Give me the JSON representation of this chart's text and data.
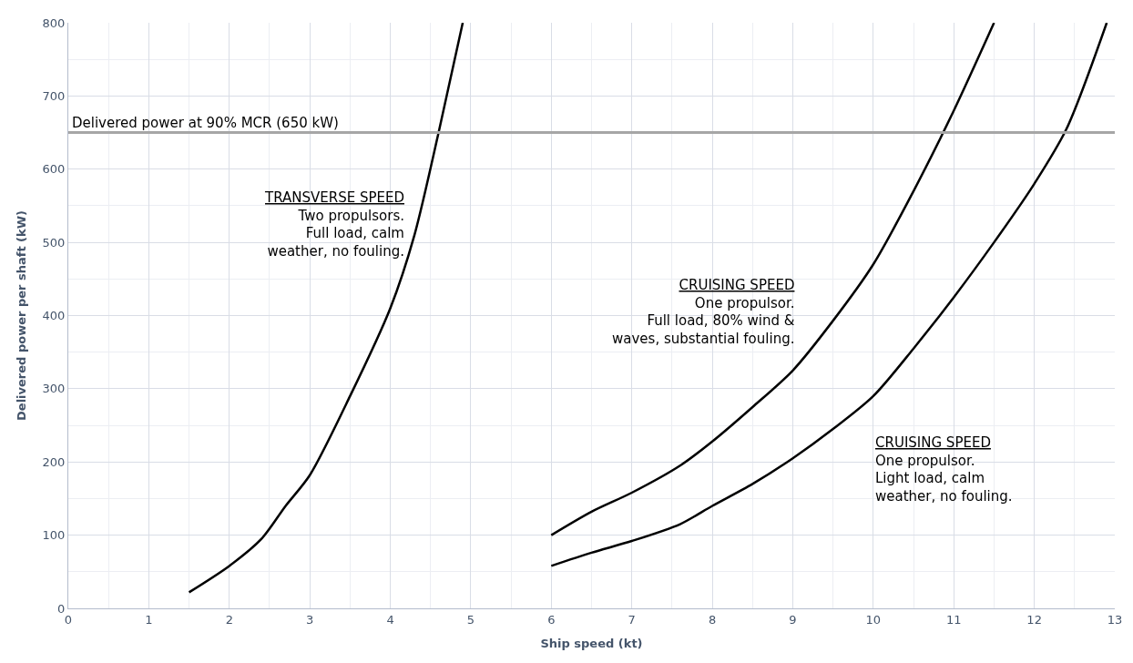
{
  "chart_data": {
    "type": "line",
    "xlabel": "Ship speed (kt)",
    "ylabel": "Delivered power per shaft (kW)",
    "xlim": [
      0,
      13
    ],
    "xticks": [
      0,
      1,
      2,
      3,
      4,
      5,
      6,
      7,
      8,
      9,
      10,
      11,
      12,
      13
    ],
    "ylim": [
      0,
      800
    ],
    "yticks": [
      0,
      100,
      200,
      300,
      400,
      500,
      600,
      700,
      800
    ],
    "grid": true,
    "marker": "none",
    "line_style": "solid",
    "series": [
      {
        "color": "#000000",
        "x": [
          1.5,
          2,
          2.4,
          2.7,
          3,
          3.5,
          4,
          4.3,
          4.6,
          4.9
        ],
        "values": [
          22,
          58,
          95,
          140,
          182,
          290,
          410,
          510,
          650,
          800
        ]
      },
      {
        "color": "#000000",
        "x": [
          6,
          6.5,
          7,
          7.6,
          8,
          8.5,
          9,
          9.5,
          10,
          10.5,
          11,
          11.5
        ],
        "values": [
          100,
          132,
          158,
          195,
          228,
          275,
          325,
          393,
          470,
          570,
          680,
          800
        ]
      },
      {
        "color": "#000000",
        "x": [
          6,
          6.5,
          7,
          7.6,
          8,
          8.5,
          9,
          9.5,
          10,
          10.5,
          11,
          11.5,
          12,
          12.4,
          12.9
        ],
        "values": [
          58,
          76,
          92,
          115,
          140,
          170,
          205,
          245,
          290,
          355,
          425,
          500,
          580,
          655,
          800
        ]
      }
    ],
    "ref_lines": [
      {
        "axis": "y",
        "value": 650,
        "label": "Delivered power at 90% MCR (650 kW)",
        "color": "#a6a6a6"
      }
    ],
    "annotations": [
      "TRANSVERSE SPEED\nTwo propulsors.\nFull load, calm\nweather, no fouling.",
      "CRUISING SPEED\nOne propulsor.\nFull load, 80% wind &\nwaves, substantial fouling.",
      "CRUISING SPEED\nOne propulsor.\nLight load, calm\nweather, no fouling."
    ]
  }
}
